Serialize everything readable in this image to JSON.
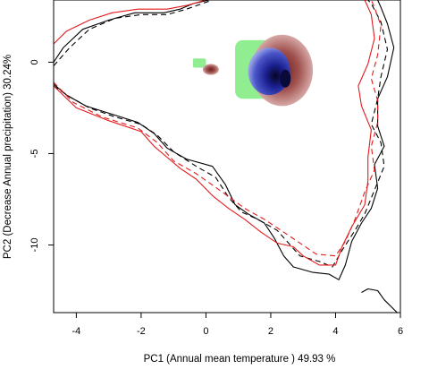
{
  "chart_data": {
    "type": "contour-density",
    "xlabel": "PC1 (Annual mean temperature ) 49.93 %",
    "ylabel": "PC2 (Decrease Annual precipitation) 30.24%",
    "xlim": [
      -4.7,
      6.0
    ],
    "ylim": [
      -13.7,
      3.4
    ],
    "xticks": [
      -4,
      -2,
      0,
      2,
      4,
      6
    ],
    "yticks": [
      0,
      -5,
      -10
    ],
    "grid": false,
    "legend": "none",
    "colors": {
      "contour_black": "#000000",
      "contour_red": "#e31a1c",
      "density_green": "#90ee90",
      "density_red": "#a0524f",
      "density_blue": "#1a1f8f",
      "density_peak": "#0a0a3a"
    },
    "series": [
      {
        "style": "solid",
        "color": "black",
        "points": [
          [
            -4.7,
            0.0
          ],
          [
            -4.4,
            0.8
          ],
          [
            -3.8,
            1.8
          ],
          [
            -3.0,
            2.3
          ],
          [
            -2.2,
            2.7
          ],
          [
            -1.3,
            2.7
          ],
          [
            -0.8,
            2.9
          ],
          [
            -0.4,
            3.2
          ],
          [
            0.1,
            3.4
          ]
        ]
      },
      {
        "style": "solid",
        "color": "black",
        "points": [
          [
            -4.7,
            -1.2
          ],
          [
            -4.3,
            -1.8
          ],
          [
            -3.7,
            -2.4
          ],
          [
            -2.8,
            -2.9
          ],
          [
            -2.1,
            -3.3
          ],
          [
            -1.6,
            -3.9
          ],
          [
            -1.2,
            -4.7
          ],
          [
            -0.6,
            -5.3
          ],
          [
            0.2,
            -5.7
          ],
          [
            0.6,
            -6.7
          ],
          [
            0.9,
            -7.8
          ],
          [
            1.3,
            -8.3
          ],
          [
            1.8,
            -8.8
          ],
          [
            2.1,
            -9.6
          ],
          [
            2.4,
            -10.6
          ],
          [
            2.7,
            -11.2
          ],
          [
            3.3,
            -11.5
          ],
          [
            3.8,
            -11.6
          ],
          [
            4.1,
            -11.9
          ],
          [
            4.3,
            -11.1
          ],
          [
            4.5,
            -9.8
          ],
          [
            4.8,
            -8.8
          ],
          [
            5.1,
            -8.0
          ],
          [
            5.3,
            -6.9
          ],
          [
            5.2,
            -5.6
          ],
          [
            5.5,
            -4.6
          ],
          [
            5.3,
            -3.5
          ],
          [
            5.3,
            -2.0
          ],
          [
            5.6,
            -0.8
          ],
          [
            5.8,
            0.8
          ],
          [
            5.6,
            2.1
          ],
          [
            5.4,
            3.0
          ],
          [
            5.3,
            3.4
          ]
        ]
      },
      {
        "style": "dashed",
        "color": "black",
        "points": [
          [
            -4.7,
            -0.2
          ],
          [
            -4.2,
            0.8
          ],
          [
            -3.6,
            1.8
          ],
          [
            -2.8,
            2.4
          ],
          [
            -2.0,
            2.6
          ],
          [
            -1.2,
            2.6
          ],
          [
            -0.6,
            2.9
          ],
          [
            0.2,
            3.4
          ]
        ]
      },
      {
        "style": "dashed",
        "color": "black",
        "points": [
          [
            -4.7,
            -1.3
          ],
          [
            -4.2,
            -1.9
          ],
          [
            -3.6,
            -2.5
          ],
          [
            -2.8,
            -3.0
          ],
          [
            -2.0,
            -3.4
          ],
          [
            -1.5,
            -4.0
          ],
          [
            -1.0,
            -4.9
          ],
          [
            -0.3,
            -5.7
          ],
          [
            0.3,
            -6.3
          ],
          [
            0.7,
            -7.4
          ],
          [
            1.1,
            -8.2
          ],
          [
            1.6,
            -8.6
          ],
          [
            2.2,
            -9.2
          ],
          [
            2.6,
            -10.0
          ],
          [
            2.9,
            -10.6
          ],
          [
            3.5,
            -10.9
          ],
          [
            3.9,
            -11.2
          ],
          [
            4.2,
            -10.3
          ],
          [
            4.6,
            -9.2
          ],
          [
            4.9,
            -8.3
          ],
          [
            5.2,
            -7.0
          ],
          [
            5.5,
            -5.7
          ],
          [
            5.4,
            -4.4
          ],
          [
            5.1,
            -3.4
          ],
          [
            5.3,
            -2.0
          ],
          [
            5.4,
            -0.8
          ],
          [
            5.6,
            0.7
          ],
          [
            5.4,
            2.2
          ],
          [
            5.1,
            3.2
          ],
          [
            5.0,
            3.4
          ]
        ]
      },
      {
        "style": "solid",
        "color": "red",
        "points": [
          [
            -4.7,
            1.0
          ],
          [
            -4.3,
            1.7
          ],
          [
            -3.6,
            2.3
          ],
          [
            -2.9,
            2.7
          ],
          [
            -2.1,
            2.9
          ],
          [
            -1.2,
            2.9
          ],
          [
            -0.6,
            3.1
          ],
          [
            0.0,
            3.4
          ]
        ]
      },
      {
        "style": "solid",
        "color": "red",
        "points": [
          [
            -4.7,
            -1.3
          ],
          [
            -4.0,
            -2.5
          ],
          [
            -3.0,
            -3.2
          ],
          [
            -2.0,
            -3.8
          ],
          [
            -1.6,
            -4.6
          ],
          [
            -1.2,
            -5.2
          ],
          [
            -0.8,
            -5.8
          ],
          [
            -0.3,
            -6.4
          ],
          [
            0.2,
            -7.3
          ],
          [
            0.7,
            -8.0
          ],
          [
            1.2,
            -8.6
          ],
          [
            1.7,
            -9.3
          ],
          [
            2.2,
            -9.9
          ],
          [
            2.7,
            -10.1
          ],
          [
            3.0,
            -10.6
          ],
          [
            3.5,
            -11.1
          ],
          [
            4.0,
            -11.1
          ],
          [
            4.2,
            -10.1
          ],
          [
            4.5,
            -9.0
          ],
          [
            4.9,
            -7.8
          ],
          [
            5.0,
            -6.5
          ],
          [
            5.0,
            -5.2
          ],
          [
            5.1,
            -3.7
          ],
          [
            4.8,
            -2.4
          ],
          [
            4.7,
            -1.3
          ],
          [
            5.0,
            -0.1
          ],
          [
            5.2,
            1.3
          ],
          [
            5.1,
            2.6
          ],
          [
            4.9,
            3.4
          ]
        ]
      },
      {
        "style": "dashed",
        "color": "red",
        "points": [
          [
            -4.7,
            -1.1
          ],
          [
            -4.1,
            -2.2
          ],
          [
            -3.2,
            -3.0
          ],
          [
            -2.1,
            -3.6
          ],
          [
            -1.5,
            -4.4
          ],
          [
            -1.0,
            -5.4
          ],
          [
            -0.3,
            -6.1
          ],
          [
            0.5,
            -7.1
          ],
          [
            1.2,
            -8.0
          ],
          [
            1.8,
            -8.6
          ],
          [
            2.4,
            -9.3
          ],
          [
            2.9,
            -9.9
          ],
          [
            3.4,
            -10.5
          ],
          [
            4.0,
            -10.6
          ],
          [
            4.3,
            -9.8
          ],
          [
            4.6,
            -8.6
          ],
          [
            4.9,
            -7.1
          ],
          [
            5.2,
            -5.9
          ],
          [
            5.1,
            -4.6
          ],
          [
            5.3,
            -3.3
          ],
          [
            5.3,
            -2.1
          ],
          [
            5.1,
            -0.9
          ],
          [
            5.3,
            0.4
          ],
          [
            5.4,
            2.0
          ],
          [
            5.2,
            3.0
          ],
          [
            5.1,
            3.4
          ]
        ]
      },
      {
        "style": "solid",
        "color": "black",
        "points": [
          [
            4.8,
            -12.6
          ],
          [
            5.0,
            -12.4
          ],
          [
            5.3,
            -12.5
          ],
          [
            5.5,
            -13.0
          ],
          [
            5.9,
            -13.7
          ]
        ]
      }
    ],
    "density_regions": [
      {
        "name_color": "green",
        "x_range": [
          0.9,
          2.2
        ],
        "y_range": [
          -2.0,
          1.2
        ]
      },
      {
        "name_color": "green",
        "x_range": [
          -0.4,
          0.0
        ],
        "y_range": [
          -0.3,
          0.2
        ]
      },
      {
        "name_color": "red",
        "x_range": [
          1.4,
          3.3
        ],
        "y_range": [
          -2.4,
          1.5
        ]
      },
      {
        "name_color": "red",
        "x_range": [
          -0.1,
          0.4
        ],
        "y_range": [
          -0.7,
          -0.1
        ]
      },
      {
        "name_color": "blue",
        "x_range": [
          1.3,
          2.6
        ],
        "y_range": [
          -1.8,
          0.8
        ]
      }
    ]
  }
}
